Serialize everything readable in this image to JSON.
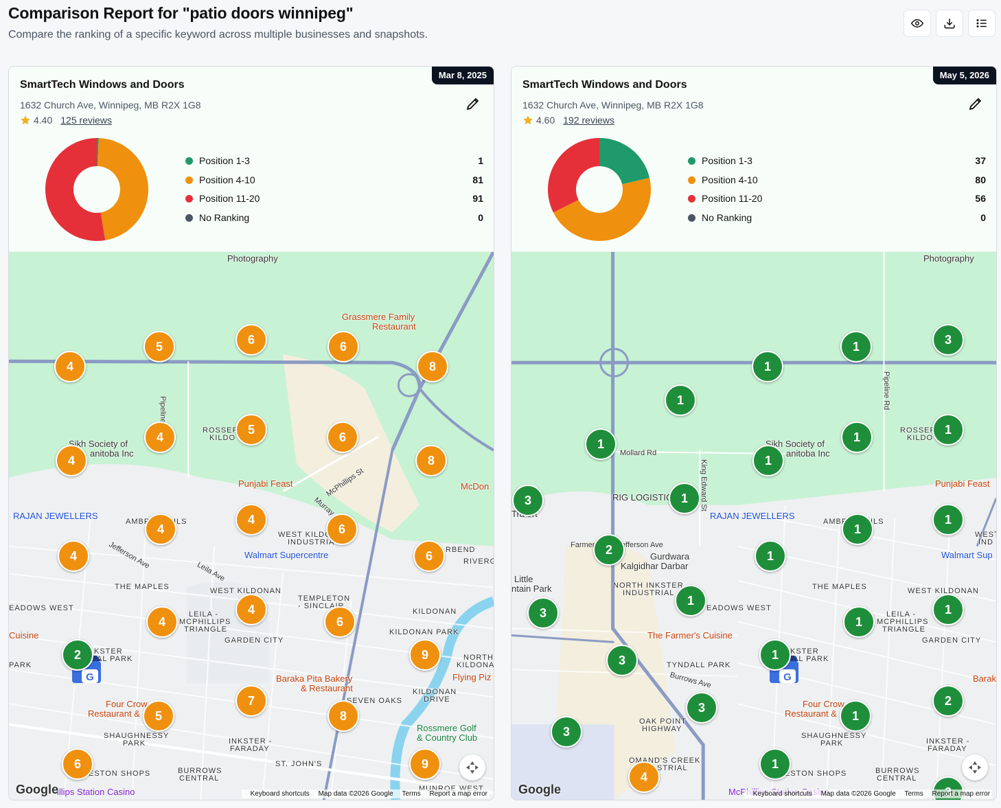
{
  "header": {
    "title": "Comparison Report for \"patio doors winnipeg\"",
    "subtitle": "Compare the ranking of a specific keyword across multiple businesses and snapshots.",
    "buttons": [
      {
        "icon": "eye-icon"
      },
      {
        "icon": "download-icon"
      },
      {
        "icon": "list-icon"
      }
    ]
  },
  "colors": {
    "pos_1_3": "#1f9a6a",
    "pos_4_10": "#f0900f",
    "pos_11_20": "#e5303a",
    "no_rank": "#4b5563",
    "marker_orange": "#f0900f",
    "marker_green": "#1f8e3a"
  },
  "cards": [
    {
      "date": "Mar 8, 2025",
      "business": "SmartTech Windows and Doors",
      "address": "1632 Church Ave, Winnipeg, MB R2X 1G8",
      "rating": "4.40",
      "reviews": "125 reviews",
      "legend": [
        {
          "label": "Position 1-3",
          "value": "1"
        },
        {
          "label": "Position 4-10",
          "value": "81"
        },
        {
          "label": "Position 11-20",
          "value": "91"
        },
        {
          "label": "No Ranking",
          "value": "0"
        }
      ],
      "markers": [
        "5",
        "6",
        "6",
        "4",
        "8",
        "4",
        "5",
        "6",
        "4",
        "8",
        "4",
        "6",
        "4",
        "4",
        "6",
        "4",
        "4",
        "6",
        "9",
        "5",
        "7",
        "8",
        "6",
        "9",
        "2"
      ],
      "map_labels": {
        "photography": "Photography",
        "grassmere": "Grassmere Family",
        "restaurant": "Restaurant",
        "pipeline": "Pipeline Rd",
        "rosser": "ROSSER",
        "kildo": "KILDO",
        "sikh1": "Sikh Society of",
        "sikh2": "anitoba Inc",
        "punjabi": "Punjabi Feast",
        "mcphillips": "McPhillips St",
        "murray": "Murray",
        "mcdon": "McDon",
        "rajan": "RAJAN JEWELLERS",
        "ambr": "AMBR",
        "ils": "ILS",
        "westkildo": "WEST KILDO",
        "industria": "INDUSTRIA",
        "walmart": "Walmart Supercentre",
        "rbend": "RBEND",
        "river": "RIVERG",
        "jefferson": "Jefferson Ave",
        "leila": "Leila Ave",
        "maples": "THE MAPLES",
        "westkildonan": "WEST KILDONAN",
        "templeton": "TEMPLETON",
        "sinclair": "- SINCLAIR",
        "eadows": "EADOWS WEST",
        "leila2": "LEILA -",
        "mcphillips2": "MCPHILLIPS",
        "triangle": "TRIANGLE",
        "kildonan": "KILDONAN",
        "kildonanpark": "KILDONAN PARK",
        "cuisine": "Cuisine",
        "gardencity": "GARDEN CITY",
        "kster": "KSTER",
        "ialpark": "IAL PARK",
        "park": "PARK",
        "baraka1": "Baraka Pita Bakery",
        "baraka2": "& Restaurant",
        "north": "NORTH",
        "kildonan2": "KILDONAN",
        "flying": "Flying Piz",
        "fourcrow1": "Four Crow",
        "fourcrow2": "Restaurant &",
        "sevenoaks": "SEVEN OAKS",
        "kildonandrive1": "KILDONAN",
        "kildonandrive2": "DRIVE",
        "rossmere1": "Rossmere Golf",
        "rossmere2": "& Country Club",
        "shaughnessy1": "SHAUGHNESSY",
        "shaughnessy2": "PARK",
        "inkster1": "INKSTER -",
        "inkster2": "FARADAY",
        "stjohns": "ST. JOHN'S",
        "burrows1": "BURROWS",
        "burrows2": "CENTRAL",
        "eston": "ESTON SHOPS",
        "casino": "illips Station Casino",
        "munroe": "MUNROE WEST"
      },
      "attribution": {
        "shortcuts": "Keyboard shortcuts",
        "mapdata": "Map data ©2026 Google",
        "terms": "Terms",
        "report": "Report a map error"
      },
      "google": "Google"
    },
    {
      "date": "May 5, 2026",
      "business": "SmartTech Windows and Doors",
      "address": "1632 Church Ave, Winnipeg, MB R2X 1G8",
      "rating": "4.60",
      "reviews": "192 reviews",
      "legend": [
        {
          "label": "Position 1-3",
          "value": "37"
        },
        {
          "label": "Position 4-10",
          "value": "80"
        },
        {
          "label": "Position 11-20",
          "value": "56"
        },
        {
          "label": "No Ranking",
          "value": "0"
        }
      ],
      "markers": [
        "1",
        "3",
        "1",
        "1",
        "1",
        "1",
        "1",
        "1",
        "1",
        "3",
        "1",
        "1",
        "2",
        "1",
        "1",
        "1",
        "1",
        "3",
        "1",
        "3",
        "1",
        "3",
        "2",
        "1",
        "3",
        "3",
        "4",
        "1"
      ],
      "map_labels": {
        "photography": "Photography",
        "mollard": "Mollard Rd",
        "kingedward": "King Edward St",
        "pipeline": "Pipeline Rd",
        "rosser": "ROSSER",
        "kildo": "KILDO",
        "sikh1": "Sikh Society of",
        "sikh2": "anitoba Inc",
        "punjabi": "Punjabi Feast",
        "rig": "RIG LOGISTIC",
        "rt": "Tra  ort",
        "rajan": "RAJAN JEWELLERS",
        "ambr": "AMBR",
        "ils": "ILS",
        "west": "WEST",
        "ind": "IND",
        "farmer": "Farmer",
        "jefferson": "efferson Ave",
        "gurdwara1": "Gurdwara",
        "gurdwara2": "Kalgidhar Darbar",
        "walmart": "Walmart Sup",
        "little1": "Little",
        "little2": "ntain Park",
        "northinkster1": "NORTH INKSTER",
        "northinkster2": "INDUSTRIAL",
        "eadows": "EADOWS WEST",
        "maples": "THE MAPLES",
        "westkildonan": "WEST KILDONAN",
        "leila2": "LEILA -",
        "mcphillips2": "MCPHILLIPS",
        "triangle": "TRIANGLE",
        "farmerscuisine": "The Farmer's Cuisine",
        "gardencity": "GARDEN CITY",
        "kster": "KSTER",
        "ialpark": "IAL PARK",
        "tyndall": "TYNDALL PARK",
        "burrowsave": "Burrows Ave",
        "barak": "Barak",
        "fourcrow1": "Four Crow",
        "fourcrow2": "Restaurant &",
        "oakpoint1": "OAK POINT",
        "oakpoint2": "HIGHWAY",
        "shaughnessy1": "SHAUGHNESSY",
        "shaughnessy2": "PARK",
        "inkster1": "INKSTER -",
        "inkster2": "FARADAY",
        "omands1": "OMAND'S CREEK",
        "omands2": "STRIAL",
        "eston": "ESTON SHOPS",
        "burrows1": "BURROWS",
        "burrows2": "CENTRAL",
        "casino": "McPhillips Station Casino"
      },
      "attribution": {
        "shortcuts": "Keyboard shortcuts",
        "mapdata": "Map data ©2026 Google",
        "terms": "Terms",
        "report": "Report a map error"
      },
      "google": "Google"
    }
  ]
}
